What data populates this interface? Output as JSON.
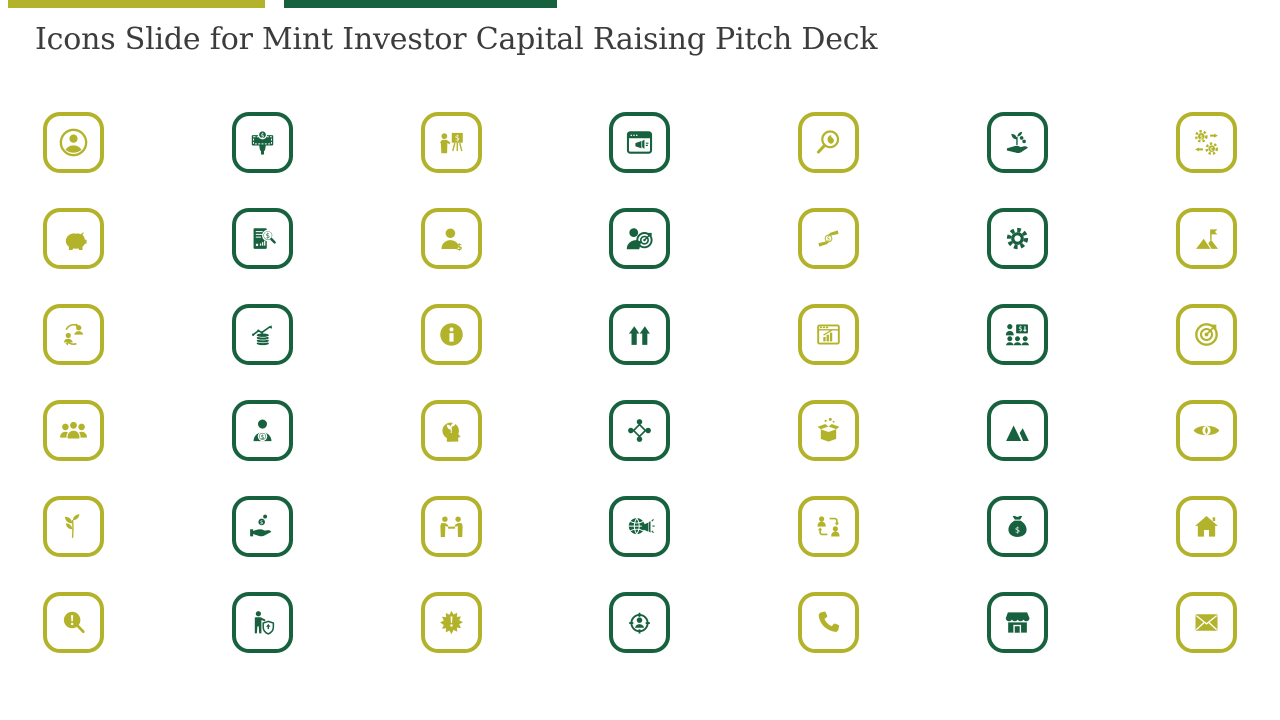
{
  "slide": {
    "title": "Icons Slide for Mint Investor Capital Raising Pitch Deck"
  },
  "colors": {
    "olive": "#b2b32b",
    "green": "#17613f",
    "title_text": "#3c3c3c",
    "background": "#ffffff"
  },
  "header": {
    "accent_bars": [
      {
        "name": "accent-bar-olive",
        "color": "olive"
      },
      {
        "name": "accent-bar-green",
        "color": "green"
      }
    ]
  },
  "icon_grid": {
    "rows": 6,
    "columns": 7,
    "icons": [
      {
        "name": "user-profile-icon",
        "color": "olive"
      },
      {
        "name": "cash-payment-hand-icon",
        "color": "green"
      },
      {
        "name": "investor-presentation-icon",
        "color": "olive"
      },
      {
        "name": "web-promotion-icon",
        "color": "green"
      },
      {
        "name": "growth-search-icon",
        "color": "olive"
      },
      {
        "name": "investment-plant-hand-icon",
        "color": "green"
      },
      {
        "name": "currency-exchange-gears-icon",
        "color": "olive"
      },
      {
        "name": "piggy-bank-icon",
        "color": "olive"
      },
      {
        "name": "financial-audit-icon",
        "color": "green"
      },
      {
        "name": "investor-dollar-icon",
        "color": "olive"
      },
      {
        "name": "customer-target-icon",
        "color": "green"
      },
      {
        "name": "coin-exchange-hands-icon",
        "color": "olive"
      },
      {
        "name": "gear-settings-icon",
        "color": "green"
      },
      {
        "name": "mission-flag-mountain-icon",
        "color": "olive"
      },
      {
        "name": "people-sync-icon",
        "color": "olive"
      },
      {
        "name": "money-growth-trend-icon",
        "color": "green"
      },
      {
        "name": "info-icon",
        "color": "olive"
      },
      {
        "name": "growth-arrows-chart-icon",
        "color": "green"
      },
      {
        "name": "web-analytics-icon",
        "color": "olive"
      },
      {
        "name": "payroll-team-icon",
        "color": "green"
      },
      {
        "name": "goal-target-arrow-icon",
        "color": "olive"
      },
      {
        "name": "team-group-icon",
        "color": "olive"
      },
      {
        "name": "shareholder-coin-icon",
        "color": "green"
      },
      {
        "name": "creative-mind-icon",
        "color": "olive"
      },
      {
        "name": "people-network-icon",
        "color": "green"
      },
      {
        "name": "product-launch-box-icon",
        "color": "olive"
      },
      {
        "name": "mountain-peaks-icon",
        "color": "green"
      },
      {
        "name": "vision-eye-icon",
        "color": "olive"
      },
      {
        "name": "leaves-growth-icon",
        "color": "olive"
      },
      {
        "name": "receive-funds-hand-icon",
        "color": "green"
      },
      {
        "name": "business-meeting-icon",
        "color": "olive"
      },
      {
        "name": "global-promotion-icon",
        "color": "green"
      },
      {
        "name": "people-transfer-icon",
        "color": "olive"
      },
      {
        "name": "money-bag-icon",
        "color": "green"
      },
      {
        "name": "home-icon",
        "color": "olive"
      },
      {
        "name": "risk-search-icon",
        "color": "olive"
      },
      {
        "name": "insurance-person-icon",
        "color": "green"
      },
      {
        "name": "alert-burst-icon",
        "color": "olive"
      },
      {
        "name": "target-audience-icon",
        "color": "green"
      },
      {
        "name": "phone-call-icon",
        "color": "olive"
      },
      {
        "name": "storefront-icon",
        "color": "green"
      },
      {
        "name": "email-envelope-icon",
        "color": "olive"
      }
    ]
  }
}
